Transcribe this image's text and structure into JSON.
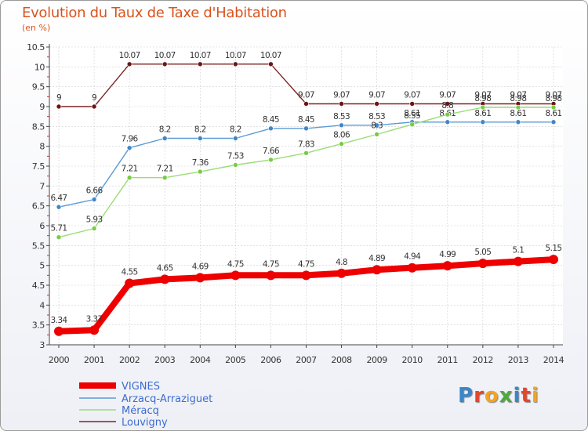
{
  "chart_data": {
    "type": "line",
    "title": "Evolution du Taux de Taxe d'Habitation",
    "subtitle": "(en %)",
    "x": [
      "2000",
      "2001",
      "2002",
      "2003",
      "2004",
      "2005",
      "2006",
      "2007",
      "2008",
      "2009",
      "2010",
      "2011",
      "2012",
      "2013",
      "2014"
    ],
    "ylim": [
      3,
      10.5
    ],
    "yticks": [
      "3",
      "3.5",
      "4",
      "4.5",
      "5",
      "5.5",
      "6",
      "6.5",
      "7",
      "7.5",
      "8",
      "8.5",
      "9",
      "9.5",
      "10",
      "10.5"
    ],
    "series": [
      {
        "name": "Louvigny",
        "color": "#7a2525",
        "dot": "#6b1515",
        "width": 1.4,
        "values": [
          9,
          9,
          10.07,
          10.07,
          10.07,
          10.07,
          10.07,
          9.07,
          9.07,
          9.07,
          9.07,
          9.07,
          9.07,
          9.07,
          9.07
        ],
        "labels": [
          "9",
          "9",
          "10.07",
          "10.07",
          "10.07",
          "10.07",
          "10.07",
          "9.07",
          "9.07",
          "9.07",
          "9.07",
          "9.07",
          "9.07",
          "9.07",
          "9.07"
        ]
      },
      {
        "name": "Arzacq-Arraziguet",
        "color": "#5b9bd5",
        "dot": "#3f86c8",
        "width": 1.4,
        "values": [
          6.47,
          6.66,
          7.96,
          8.2,
          8.2,
          8.2,
          8.45,
          8.45,
          8.53,
          8.53,
          8.61,
          8.61,
          8.61,
          8.61,
          8.61
        ],
        "labels": [
          "6.47",
          "6.66",
          "7.96",
          "8.2",
          "8.2",
          "8.2",
          "8.45",
          "8.45",
          "8.53",
          "8.53",
          "8.61",
          "8.61",
          "8.61",
          "8.61",
          "8.61"
        ]
      },
      {
        "name": "Méracq",
        "color": "#99dd77",
        "dot": "#77cc44",
        "width": 1.4,
        "values": [
          5.71,
          5.93,
          7.21,
          7.21,
          7.36,
          7.53,
          7.66,
          7.83,
          8.06,
          8.3,
          8.55,
          8.8,
          8.98,
          8.98,
          8.98
        ],
        "labels": [
          "5.71",
          "5.93",
          "7.21",
          "7.21",
          "7.36",
          "7.53",
          "7.66",
          "7.83",
          "8.06",
          "8.3",
          "8.55",
          "8.8",
          "8.98",
          "8.98",
          "8.98"
        ]
      },
      {
        "name": "VIGNES",
        "color": "#ee0000",
        "dot": "#ee0000",
        "width": 8,
        "values": [
          3.34,
          3.37,
          4.55,
          4.65,
          4.69,
          4.75,
          4.75,
          4.75,
          4.8,
          4.89,
          4.94,
          4.99,
          5.05,
          5.1,
          5.15
        ],
        "labels": [
          "3.34",
          "3.37",
          "4.55",
          "4.65",
          "4.69",
          "4.75",
          "4.75",
          "4.75",
          "4.8",
          "4.89",
          "4.94",
          "4.99",
          "5.05",
          "5.1",
          "5.15"
        ]
      }
    ],
    "legend": [
      "VIGNES",
      "Arzacq-Arraziguet",
      "Méracq",
      "Louvigny"
    ],
    "legend_position": "bottom-left"
  },
  "logo": {
    "text": "Proxiti",
    "letters": [
      "P",
      "r",
      "o",
      "x",
      "i",
      "t",
      "i"
    ],
    "colors": [
      "#3a86c8",
      "#e5452c",
      "#f2a325",
      "#4bab3c",
      "#3a86c8",
      "#e5452c",
      "#f2a325"
    ]
  }
}
